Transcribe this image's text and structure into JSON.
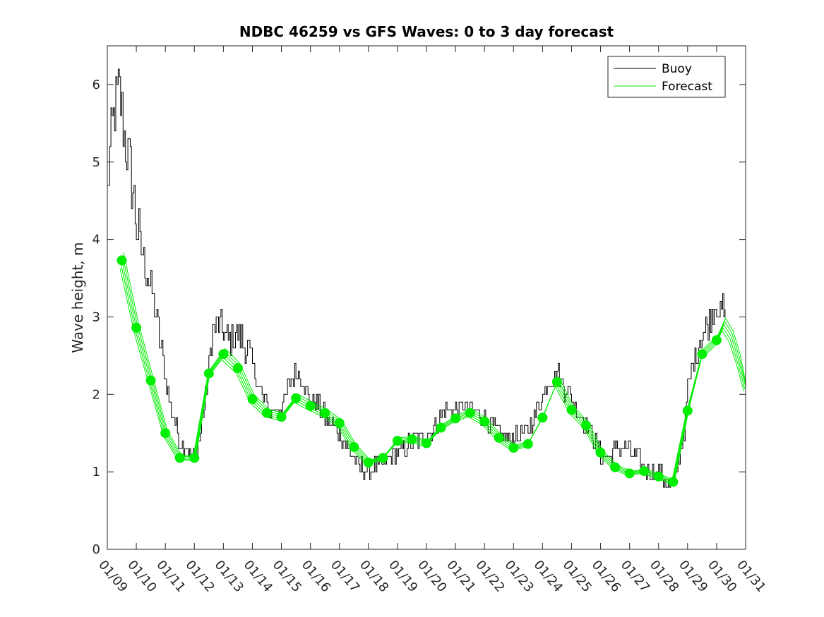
{
  "chart_data": {
    "type": "line",
    "title": "NDBC 46259 vs GFS Waves: 0 to 3 day forecast",
    "xlabel": "",
    "ylabel": "Wave height, m",
    "xlim": [
      0,
      22
    ],
    "ylim": [
      0,
      6.5
    ],
    "y_ticks": [
      0,
      1,
      2,
      3,
      4,
      5,
      6
    ],
    "x_tick_labels": [
      "01/09",
      "01/10",
      "01/11",
      "01/12",
      "01/13",
      "01/14",
      "01/15",
      "01/16",
      "01/17",
      "01/18",
      "01/19",
      "01/20",
      "01/21",
      "01/22",
      "01/23",
      "01/24",
      "01/25",
      "01/26",
      "01/27",
      "01/28",
      "01/29",
      "01/30",
      "01/31"
    ],
    "legend": {
      "location": "top-right",
      "entries": [
        {
          "label": "Buoy",
          "color": "#000000"
        },
        {
          "label": "Forecast",
          "color": "#00ee00"
        }
      ]
    },
    "series": [
      {
        "name": "Buoy",
        "color": "#000000",
        "x": [
          0,
          0.1,
          0.25,
          0.4,
          0.5,
          0.6,
          0.75,
          0.9,
          1.0,
          1.2,
          1.4,
          1.6,
          1.8,
          2.0,
          2.2,
          2.5,
          2.75,
          3.0,
          3.2,
          3.4,
          3.6,
          3.8,
          4.0,
          4.2,
          4.5,
          4.8,
          5.0,
          5.3,
          5.6,
          6.0,
          6.3,
          6.6,
          6.9,
          7.2,
          7.5,
          7.8,
          8.0,
          8.3,
          8.6,
          8.9,
          9.2,
          9.5,
          9.8,
          10.2,
          10.6,
          11.0,
          11.3,
          11.6,
          12.0,
          12.3,
          12.6,
          12.9,
          13.2,
          13.5,
          13.8,
          14.1,
          14.4,
          14.7,
          15.0,
          15.3,
          15.5,
          15.7,
          15.9,
          16.2,
          16.5,
          16.8,
          17.0,
          17.3,
          17.6,
          17.9,
          18.2,
          18.5,
          18.8,
          19.1,
          19.3,
          19.5,
          19.7,
          19.9,
          20.0,
          20.2,
          20.4,
          20.6,
          20.8,
          21.0,
          21.1,
          21.2,
          21.3
        ],
        "values": [
          4.6,
          5.2,
          5.7,
          5.9,
          5.6,
          5.3,
          5.0,
          4.6,
          4.2,
          3.8,
          3.5,
          3.2,
          2.7,
          2.2,
          1.8,
          1.4,
          1.3,
          1.2,
          1.5,
          2.0,
          2.8,
          2.9,
          2.8,
          2.7,
          2.8,
          2.6,
          2.4,
          2.0,
          1.8,
          1.8,
          2.2,
          2.3,
          2.0,
          1.9,
          1.7,
          1.6,
          1.5,
          1.3,
          1.1,
          1.0,
          1.05,
          1.1,
          1.2,
          1.3,
          1.4,
          1.5,
          1.6,
          1.8,
          1.8,
          1.85,
          1.8,
          1.7,
          1.6,
          1.5,
          1.4,
          1.45,
          1.5,
          1.7,
          2.0,
          2.2,
          2.3,
          2.1,
          2.0,
          1.8,
          1.6,
          1.4,
          1.2,
          1.2,
          1.3,
          1.3,
          1.2,
          1.05,
          1.0,
          0.95,
          0.85,
          0.8,
          1.2,
          1.6,
          2.1,
          2.4,
          2.7,
          2.8,
          3.0,
          3.2,
          3.0,
          3.1,
          2.9
        ]
      },
      {
        "name": "Forecast",
        "color": "#00ee00",
        "x": [
          0.5,
          1.0,
          1.5,
          2.0,
          2.5,
          3.0,
          3.5,
          4.0,
          4.5,
          5.0,
          5.5,
          6.0,
          6.5,
          7.0,
          7.5,
          8.0,
          8.5,
          9.0,
          9.5,
          10.0,
          10.5,
          11.0,
          11.5,
          12.0,
          12.5,
          13.0,
          13.5,
          14.0,
          14.5,
          15.0,
          15.5,
          16.0,
          16.5,
          17.0,
          17.5,
          18.0,
          18.5,
          19.0,
          19.5,
          20.0,
          20.5,
          21.0
        ],
        "values": [
          3.73,
          2.86,
          2.18,
          1.5,
          1.18,
          1.18,
          2.27,
          2.52,
          2.34,
          1.94,
          1.76,
          1.71,
          1.95,
          1.85,
          1.76,
          1.63,
          1.32,
          1.12,
          1.18,
          1.4,
          1.42,
          1.37,
          1.57,
          1.69,
          1.76,
          1.65,
          1.44,
          1.31,
          1.36,
          1.7,
          2.16,
          1.8,
          1.6,
          1.25,
          1.06,
          0.98,
          1.01,
          0.94,
          0.87,
          1.79,
          2.52,
          2.7
        ]
      }
    ]
  }
}
